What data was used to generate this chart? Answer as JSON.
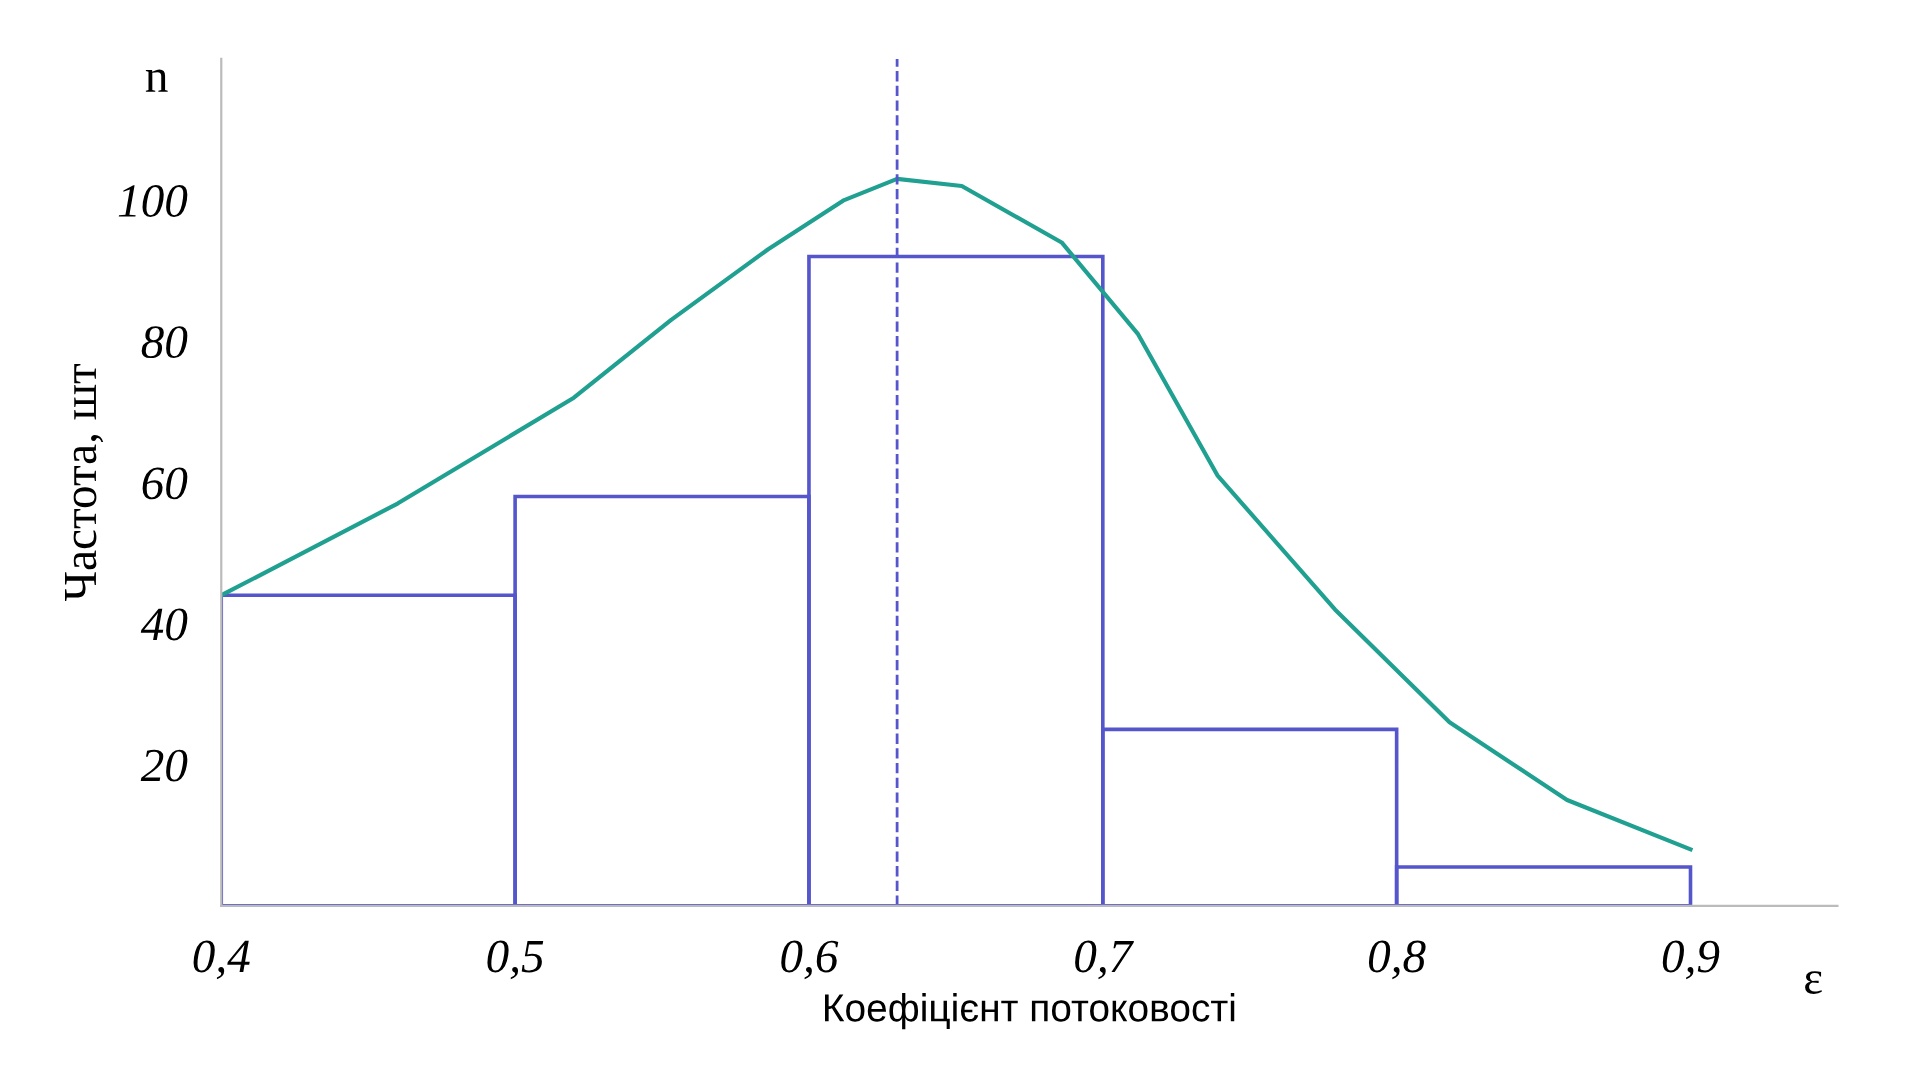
{
  "chart_data": {
    "type": "histogram",
    "ylabel": "Частота, шт",
    "xlabel": "Коефіцієнт потоковості",
    "bins": [
      0.4,
      0.5,
      0.6,
      0.7,
      0.8,
      0.9
    ],
    "values": [
      44,
      58,
      92,
      25,
      5.5
    ],
    "color": "#5555cc",
    "series": [
      {
        "type": "line",
        "color": "#20a090",
        "x": [
          0.4,
          0.46,
          0.52,
          0.553,
          0.586,
          0.612,
          0.63,
          0.652,
          0.686,
          0.712,
          0.739,
          0.779,
          0.818,
          0.858,
          0.9
        ],
        "values": [
          44,
          57,
          72,
          83,
          93,
          100,
          103,
          102,
          94,
          81,
          61,
          42,
          26,
          15,
          8
        ]
      }
    ],
    "ref_lines": [
      {
        "axis": "x",
        "value": 0.63,
        "color": "#5555cc",
        "line_style": "dashed"
      }
    ],
    "annotations": [
      "n",
      "ε"
    ],
    "xlim": [
      0.4,
      0.95
    ],
    "ylim": [
      0,
      120
    ],
    "xticks": [
      {
        "value": 0.4,
        "label": "0,4"
      },
      {
        "value": 0.5,
        "label": "0,5"
      },
      {
        "value": 0.6,
        "label": "0,6"
      },
      {
        "value": 0.7,
        "label": "0,7"
      },
      {
        "value": 0.8,
        "label": "0,8"
      },
      {
        "value": 0.9,
        "label": "0,9"
      }
    ],
    "yticks": [
      20,
      40,
      60,
      80,
      100
    ],
    "grid": false,
    "legend": false
  }
}
